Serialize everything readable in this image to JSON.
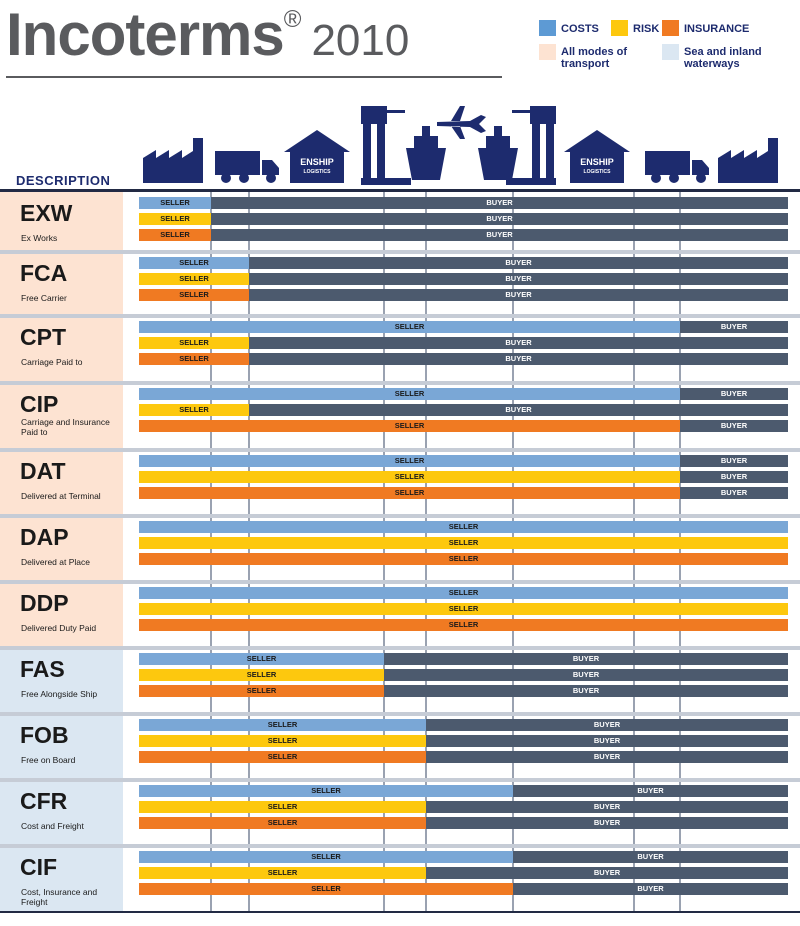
{
  "header": {
    "title": "Incoterms",
    "registered_mark": "®",
    "year": "2010",
    "description_label": "DESCRIPTION"
  },
  "legend": {
    "costs": "COSTS",
    "risk": "RISK",
    "insurance": "INSURANCE",
    "all_modes": "All modes of transport",
    "sea": "Sea and inland waterways"
  },
  "colors": {
    "costs_seller": "#7aa7d6",
    "risk_seller": "#fdc80e",
    "insurance_seller": "#f07a22",
    "buyer": "#4c5a6e",
    "all_modes_bg": "#fde3d2",
    "sea_bg": "#dbe7f2",
    "icon_navy": "#1d2b6e"
  },
  "logo_text": {
    "line1": "ENSHIP",
    "line2": "LOGISTICS"
  },
  "labels": {
    "seller": "SELLER",
    "buyer": "BUYER"
  },
  "stages_count": 11,
  "terms": [
    {
      "code": "EXW",
      "name": "Ex Works",
      "group": "all",
      "splits": [
        1,
        1,
        1
      ]
    },
    {
      "code": "FCA",
      "name": "Free Carrier",
      "group": "all",
      "splits": [
        2,
        2,
        2
      ]
    },
    {
      "code": "CPT",
      "name": "Carriage Paid to",
      "group": "all",
      "splits": [
        7,
        2,
        2
      ]
    },
    {
      "code": "CIP",
      "name": "Carriage and Insurance Paid to",
      "group": "all",
      "splits": [
        7,
        2,
        7
      ]
    },
    {
      "code": "DAT",
      "name": "Delivered at Terminal",
      "group": "all",
      "splits": [
        7,
        7,
        7
      ]
    },
    {
      "code": "DAP",
      "name": "Delivered at Place",
      "group": "all",
      "splits": [
        8,
        8,
        8
      ]
    },
    {
      "code": "DDP",
      "name": "Delivered Duty Paid",
      "group": "all",
      "splits": [
        8,
        8,
        8
      ]
    },
    {
      "code": "FAS",
      "name": "Free Alongside Ship",
      "group": "sea",
      "splits": [
        3,
        3,
        3
      ]
    },
    {
      "code": "FOB",
      "name": "Free on Board",
      "group": "sea",
      "splits": [
        4,
        4,
        4
      ]
    },
    {
      "code": "CFR",
      "name": "Cost and Freight",
      "group": "sea",
      "splits": [
        5,
        4,
        4
      ]
    },
    {
      "code": "CIF",
      "name": "Cost, Insurance and Freight",
      "group": "sea",
      "splits": [
        5,
        4,
        5
      ]
    }
  ]
}
